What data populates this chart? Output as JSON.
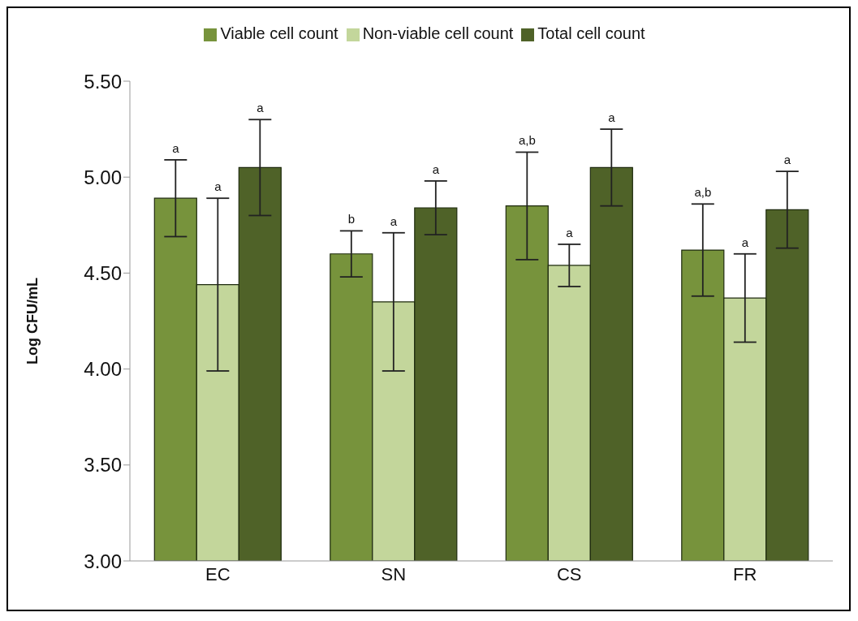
{
  "chart_data": {
    "type": "bar",
    "ylabel": "Log CFU/mL",
    "categories": [
      "EC",
      "SN",
      "CS",
      "FR"
    ],
    "series": [
      {
        "name": "Viable cell count",
        "color": "#77933c",
        "values": [
          4.89,
          4.6,
          4.85,
          4.62
        ],
        "errors": [
          0.2,
          0.12,
          0.28,
          0.24
        ]
      },
      {
        "name": "Non-viable cell count",
        "color": "#c3d69b",
        "values": [
          4.44,
          4.35,
          4.54,
          4.37
        ],
        "errors": [
          0.45,
          0.36,
          0.11,
          0.23
        ]
      },
      {
        "name": "Total cell count",
        "color": "#4f6228",
        "values": [
          5.05,
          4.84,
          5.05,
          4.83
        ],
        "errors": [
          0.25,
          0.14,
          0.2,
          0.2
        ]
      }
    ],
    "annotations": [
      "a",
      "a",
      "a",
      "b",
      "a",
      "a",
      "a,b",
      "a",
      "a",
      "a,b",
      "a",
      "a"
    ],
    "ylim": [
      3,
      5.5
    ],
    "yticks": [
      {
        "value": 3,
        "label": "3.00"
      },
      {
        "value": 3.5,
        "label": "3.50"
      },
      {
        "value": 4,
        "label": "4.00"
      },
      {
        "value": 4.5,
        "label": "4.50"
      },
      {
        "value": 5,
        "label": "5.00"
      },
      {
        "value": 5.5,
        "label": "5.50"
      }
    ],
    "grid": false,
    "legend": "top"
  }
}
